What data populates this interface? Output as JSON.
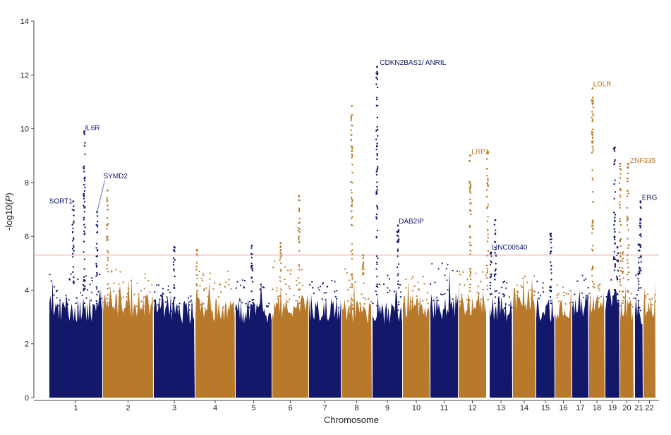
{
  "chart_data": {
    "type": "scatter",
    "subtype": "manhattan",
    "xlabel": "Chromosome",
    "ylabel": "-log10(",
    "ylabel_italic": "P",
    "ylabel_close": ")",
    "ylim": [
      0,
      14
    ],
    "yticks": [
      "0",
      "2",
      "4",
      "6",
      "8",
      "10",
      "12",
      "14"
    ],
    "threshold": 5.3,
    "colors": {
      "odd": "#14186b",
      "even": "#b87a2a",
      "threshold": "#f2a4a4"
    },
    "chromosomes": [
      {
        "label": "1",
        "start": 70,
        "end": 145,
        "bg": 3.3,
        "ceil": 4.6
      },
      {
        "label": "2",
        "start": 146,
        "end": 217,
        "bg": 3.4,
        "ceil": 4.8
      },
      {
        "label": "3",
        "start": 218,
        "end": 276,
        "bg": 3.2,
        "ceil": 4.2
      },
      {
        "label": "4",
        "start": 277,
        "end": 333,
        "bg": 3.3,
        "ceil": 4.7
      },
      {
        "label": "5",
        "start": 334,
        "end": 385,
        "bg": 3.2,
        "ceil": 4.4
      },
      {
        "label": "6",
        "start": 386,
        "end": 437,
        "bg": 3.4,
        "ceil": 5.1
      },
      {
        "label": "7",
        "start": 438,
        "end": 483,
        "bg": 3.3,
        "ceil": 4.4
      },
      {
        "label": "8",
        "start": 484,
        "end": 527,
        "bg": 3.2,
        "ceil": 4.9
      },
      {
        "label": "9",
        "start": 528,
        "end": 570,
        "bg": 3.2,
        "ceil": 4.6
      },
      {
        "label": "10",
        "start": 571,
        "end": 609,
        "bg": 3.4,
        "ceil": 4.5
      },
      {
        "label": "11",
        "start": 610,
        "end": 649,
        "bg": 3.4,
        "ceil": 5.0
      },
      {
        "label": "12",
        "start": 650,
        "end": 689,
        "bg": 3.5,
        "ceil": 4.8
      },
      {
        "label": "13",
        "start": 694,
        "end": 726,
        "bg": 3.3,
        "ceil": 4.4
      },
      {
        "label": "14",
        "start": 727,
        "end": 759,
        "bg": 3.6,
        "ceil": 4.6
      },
      {
        "label": "15",
        "start": 760,
        "end": 786,
        "bg": 3.3,
        "ceil": 4.5
      },
      {
        "label": "16",
        "start": 787,
        "end": 810,
        "bg": 3.4,
        "ceil": 4.2
      },
      {
        "label": "17",
        "start": 811,
        "end": 834,
        "bg": 3.5,
        "ceil": 4.6
      },
      {
        "label": "18",
        "start": 835,
        "end": 857,
        "bg": 3.5,
        "ceil": 4.4
      },
      {
        "label": "19",
        "start": 858,
        "end": 878,
        "bg": 3.6,
        "ceil": 4.4
      },
      {
        "label": "20",
        "start": 879,
        "end": 898,
        "bg": 3.3,
        "ceil": 4.0
      },
      {
        "label": "21",
        "start": 900,
        "end": 911,
        "bg": 3.2,
        "ceil": 4.7
      },
      {
        "label": "22",
        "start": 912,
        "end": 929,
        "bg": 3.4,
        "ceil": 3.9
      }
    ],
    "peaks": [
      {
        "chr": "1",
        "pos": 0.45,
        "top": 7.3,
        "gene": "SORT1"
      },
      {
        "chr": "1",
        "pos": 0.66,
        "top": 9.9,
        "gene": "IL6R"
      },
      {
        "chr": "1",
        "pos": 0.9,
        "top": 6.9,
        "gene": "SYMD2"
      },
      {
        "chr": "2",
        "pos": 0.09,
        "top": 7.7,
        "gene": ""
      },
      {
        "chr": "3",
        "pos": 0.5,
        "top": 5.6,
        "gene": ""
      },
      {
        "chr": "4",
        "pos": 0.04,
        "top": 5.5,
        "gene": ""
      },
      {
        "chr": "5",
        "pos": 0.45,
        "top": 5.65,
        "gene": ""
      },
      {
        "chr": "6",
        "pos": 0.23,
        "top": 5.75,
        "gene": ""
      },
      {
        "chr": "6",
        "pos": 0.74,
        "top": 7.5,
        "gene": ""
      },
      {
        "chr": "8",
        "pos": 0.34,
        "top": 10.85,
        "gene": ""
      },
      {
        "chr": "8",
        "pos": 0.72,
        "top": 5.3,
        "gene": ""
      },
      {
        "chr": "9",
        "pos": 0.15,
        "top": 12.3,
        "gene": "CDKN2BAS1/ ANRIL"
      },
      {
        "chr": "9",
        "pos": 0.86,
        "top": 6.4,
        "gene": "DAB2IP"
      },
      {
        "chr": "12",
        "pos": 0.42,
        "top": 9.0,
        "gene": "LRP1"
      },
      {
        "chr": "12",
        "pos": 1.05,
        "top": 9.15,
        "gene": ""
      },
      {
        "chr": "13",
        "pos": 0.25,
        "top": 6.6,
        "gene": ""
      },
      {
        "chr": "13",
        "pos": 0.06,
        "top": 5.4,
        "gene": "LINC00540"
      },
      {
        "chr": "15",
        "pos": 0.8,
        "top": 6.1,
        "gene": ""
      },
      {
        "chr": "18",
        "pos": 0.22,
        "top": 11.5,
        "gene": "LDLR"
      },
      {
        "chr": "19",
        "pos": 0.65,
        "top": 9.3,
        "gene": ""
      },
      {
        "chr": "19",
        "pos": 0.85,
        "top": 5.6,
        "gene": ""
      },
      {
        "chr": "20",
        "pos": 0.0,
        "top": 8.7,
        "gene": ""
      },
      {
        "chr": "20",
        "pos": 0.58,
        "top": 8.7,
        "gene": "ZNF335"
      },
      {
        "chr": "20",
        "pos": 0.22,
        "top": 5.4,
        "gene": ""
      },
      {
        "chr": "21",
        "pos": 0.7,
        "top": 7.3,
        "gene": "ERG"
      },
      {
        "chr": "21",
        "pos": 0.5,
        "top": 5.7,
        "gene": ""
      }
    ]
  }
}
